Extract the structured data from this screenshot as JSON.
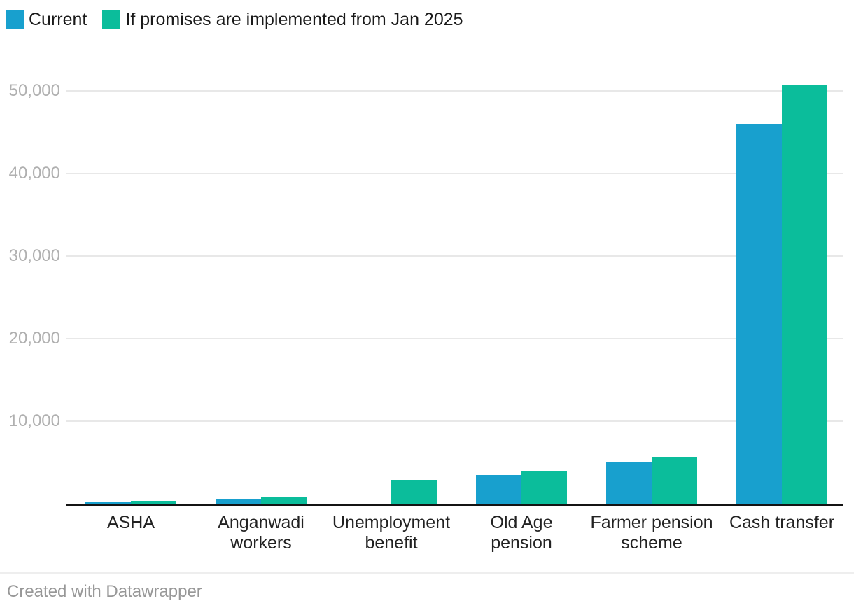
{
  "legend": {
    "items": [
      {
        "label": "Current",
        "color": "#18a0ce"
      },
      {
        "label": "If promises are implemented from Jan 2025",
        "color": "#0bbd9b"
      }
    ]
  },
  "chart_data": {
    "type": "bar",
    "subtype": "grouped-column",
    "title": "",
    "xlabel": "",
    "ylabel": "",
    "categories": [
      "ASHA",
      "Anganwadi workers",
      "Unemployment benefit",
      "Old Age pension",
      "Farmer pension scheme",
      "Cash transfer"
    ],
    "category_label_lines": [
      [
        "ASHA"
      ],
      [
        "Anganwadi",
        "workers"
      ],
      [
        "Unemployment",
        "benefit"
      ],
      [
        "Old Age",
        "pension"
      ],
      [
        "Farmer pension",
        "scheme"
      ],
      [
        "Cash transfer"
      ]
    ],
    "series": [
      {
        "name": "Current",
        "color": "#18a0ce",
        "values": [
          250,
          550,
          0,
          3500,
          5000,
          46000
        ]
      },
      {
        "name": "If promises are implemented from Jan 2025",
        "color": "#0bbd9b",
        "values": [
          350,
          750,
          2900,
          4000,
          5700,
          50800
        ]
      }
    ],
    "ylim": [
      0,
      52000
    ],
    "yticks": [
      {
        "value": 10000,
        "label": "10,000"
      },
      {
        "value": 20000,
        "label": "20,000"
      },
      {
        "value": 30000,
        "label": "30,000"
      },
      {
        "value": 40000,
        "label": "40,000"
      },
      {
        "value": 50000,
        "label": "50,000"
      }
    ],
    "grid": "horizontal",
    "legend_position": "top-left"
  },
  "footer": {
    "credit": "Created with Datawrapper"
  },
  "colors": {
    "series_current": "#18a0ce",
    "series_promised": "#0bbd9b",
    "gridline": "#e8e8e8",
    "axis_baseline": "#141414",
    "y_tick_text": "#b0b0b0",
    "x_label_text": "#222222",
    "footer_text": "#979797",
    "background": "#ffffff"
  }
}
